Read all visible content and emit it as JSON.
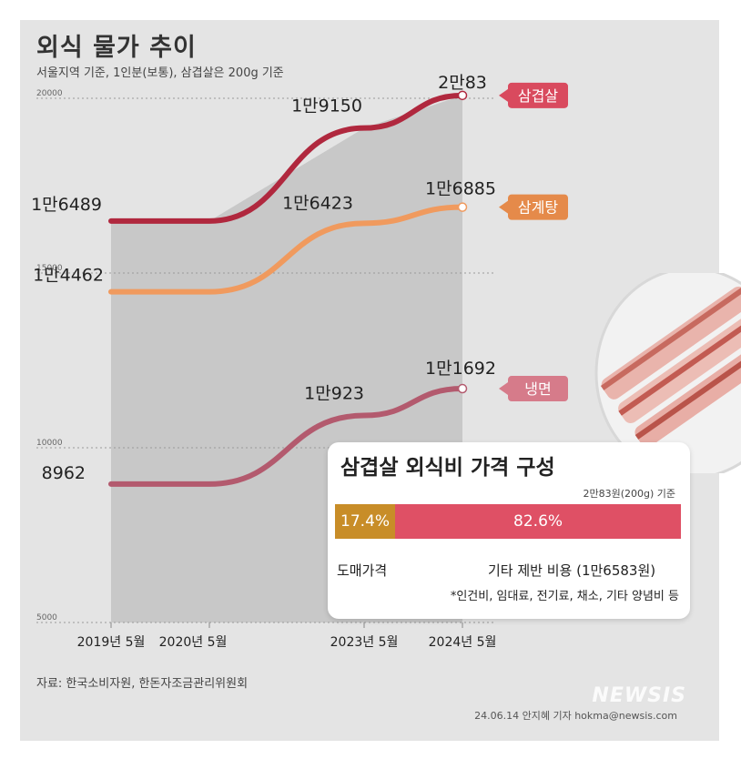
{
  "title": "외식 물가 추이",
  "subtitle": "서울지역 기준, 1인분(보통), 삼겹살은 200g 기준",
  "source": "자료: 한국소비자원, 한돈자조금관리위원회",
  "credit": "24.06.14 안지혜 기자 hokma@newsis.com",
  "watermark": "NEWSIS",
  "chart_data": {
    "type": "line",
    "x": [
      "2019년 5월",
      "2020년 5월",
      "2023년 5월",
      "2024년 5월"
    ],
    "ylim": [
      5000,
      20000
    ],
    "yticks": [
      "5000",
      "10000",
      "15000",
      "20000"
    ],
    "series": [
      {
        "name": "삼겹살",
        "color": "#b0283e",
        "values": [
          16489,
          16489,
          19150,
          20083
        ],
        "labels": [
          "1만6489",
          "",
          "1만9150",
          "2만83"
        ]
      },
      {
        "name": "삼계탕",
        "color": "#f09a5e",
        "values": [
          14462,
          14462,
          16423,
          16885
        ],
        "labels": [
          "1만4462",
          "",
          "1만6423",
          "1만6885"
        ]
      },
      {
        "name": "냉면",
        "color": "#b35a6e",
        "values": [
          8962,
          8962,
          10923,
          11692
        ],
        "labels": [
          "8962",
          "",
          "1만923",
          "1만1692"
        ]
      }
    ],
    "legend_colors": [
      "#d94a5e",
      "#e58a4a",
      "#d67b8a"
    ]
  },
  "inset": {
    "title": "삼겹살 외식비 가격 구성",
    "note": "2만83원(200g) 기준",
    "chart_data": {
      "type": "bar",
      "categories": [
        "도매가격",
        "기타 제반 비용"
      ],
      "values": [
        17.4,
        82.6
      ],
      "value_labels": [
        "17.4%",
        "82.6%"
      ]
    },
    "label_a": "도매가격",
    "label_b": "기타 제반 비용 (1만6583원)",
    "label_c": "*인건비, 임대료, 전기료, 채소, 기타 양념비 등"
  }
}
